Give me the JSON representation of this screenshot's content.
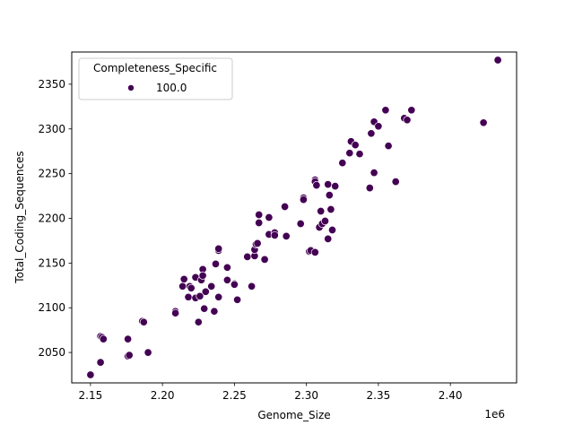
{
  "chart_data": {
    "type": "scatter",
    "title": "",
    "xlabel": "Genome_Size",
    "ylabel": "Total_Coding_Sequences",
    "x_offset_label": "1e6",
    "xlim": [
      2.137,
      2.446
    ],
    "ylim": [
      2016,
      2386
    ],
    "x_ticks": [
      2.15,
      2.2,
      2.25,
      2.3,
      2.35,
      2.4
    ],
    "x_tick_labels": [
      "2.15",
      "2.20",
      "2.25",
      "2.30",
      "2.35",
      "2.40"
    ],
    "y_ticks": [
      2050,
      2100,
      2150,
      2200,
      2250,
      2300,
      2350
    ],
    "y_tick_labels": [
      "2050",
      "2100",
      "2150",
      "2200",
      "2250",
      "2300",
      "2350"
    ],
    "grid": false,
    "legend": {
      "title": "Completeness_Specific",
      "position": "upper left",
      "entries": [
        {
          "label": "100.0",
          "color": "#440154"
        }
      ]
    },
    "series": [
      {
        "name": "100.0",
        "color": "#440154",
        "points": [
          [
            2.15,
            2025
          ],
          [
            2.157,
            2039
          ],
          [
            2.157,
            2068
          ],
          [
            2.158,
            2067
          ],
          [
            2.159,
            2065
          ],
          [
            2.176,
            2046
          ],
          [
            2.177,
            2047
          ],
          [
            2.176,
            2065
          ],
          [
            2.186,
            2085
          ],
          [
            2.187,
            2084
          ],
          [
            2.19,
            2050
          ],
          [
            2.209,
            2096
          ],
          [
            2.209,
            2094
          ],
          [
            2.214,
            2124
          ],
          [
            2.215,
            2132
          ],
          [
            2.218,
            2112
          ],
          [
            2.219,
            2124
          ],
          [
            2.22,
            2122
          ],
          [
            2.223,
            2134
          ],
          [
            2.223,
            2111
          ],
          [
            2.225,
            2084
          ],
          [
            2.226,
            2113
          ],
          [
            2.227,
            2131
          ],
          [
            2.228,
            2143
          ],
          [
            2.228,
            2136
          ],
          [
            2.229,
            2099
          ],
          [
            2.23,
            2118
          ],
          [
            2.234,
            2124
          ],
          [
            2.236,
            2096
          ],
          [
            2.239,
            2112
          ],
          [
            2.237,
            2149
          ],
          [
            2.239,
            2164
          ],
          [
            2.239,
            2166
          ],
          [
            2.245,
            2131
          ],
          [
            2.245,
            2145
          ],
          [
            2.25,
            2127
          ],
          [
            2.25,
            2126
          ],
          [
            2.252,
            2109
          ],
          [
            2.259,
            2157
          ],
          [
            2.262,
            2124
          ],
          [
            2.264,
            2158
          ],
          [
            2.264,
            2165
          ],
          [
            2.265,
            2171
          ],
          [
            2.266,
            2172
          ],
          [
            2.267,
            2195
          ],
          [
            2.267,
            2204
          ],
          [
            2.271,
            2154
          ],
          [
            2.274,
            2182
          ],
          [
            2.274,
            2201
          ],
          [
            2.278,
            2184
          ],
          [
            2.278,
            2181
          ],
          [
            2.285,
            2213
          ],
          [
            2.286,
            2180
          ],
          [
            2.296,
            2194
          ],
          [
            2.298,
            2223
          ],
          [
            2.298,
            2221
          ],
          [
            2.302,
            2163
          ],
          [
            2.303,
            2164
          ],
          [
            2.306,
            2162
          ],
          [
            2.306,
            2243
          ],
          [
            2.306,
            2241
          ],
          [
            2.307,
            2237
          ],
          [
            2.309,
            2190
          ],
          [
            2.31,
            2208
          ],
          [
            2.311,
            2194
          ],
          [
            2.313,
            2197
          ],
          [
            2.315,
            2238
          ],
          [
            2.315,
            2177
          ],
          [
            2.316,
            2226
          ],
          [
            2.317,
            2210
          ],
          [
            2.318,
            2187
          ],
          [
            2.32,
            2236
          ],
          [
            2.325,
            2262
          ],
          [
            2.33,
            2273
          ],
          [
            2.331,
            2286
          ],
          [
            2.334,
            2282
          ],
          [
            2.337,
            2272
          ],
          [
            2.344,
            2234
          ],
          [
            2.345,
            2295
          ],
          [
            2.347,
            2308
          ],
          [
            2.347,
            2251
          ],
          [
            2.35,
            2303
          ],
          [
            2.355,
            2321
          ],
          [
            2.357,
            2281
          ],
          [
            2.362,
            2241
          ],
          [
            2.368,
            2312
          ],
          [
            2.37,
            2310
          ],
          [
            2.373,
            2321
          ],
          [
            2.423,
            2307
          ],
          [
            2.433,
            2377
          ]
        ]
      }
    ]
  },
  "colors": {
    "marker": "#440154",
    "marker_edge": "#ffffff",
    "axis": "#000000",
    "legend_border": "#cccccc"
  }
}
